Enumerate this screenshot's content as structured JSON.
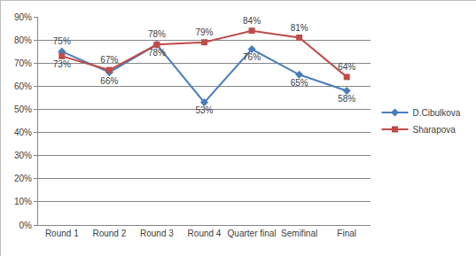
{
  "chart_data": {
    "type": "line",
    "categories": [
      "Round 1",
      "Round 2",
      "Round 3",
      "Round 4",
      "Quarter final",
      "Semifinal",
      "Final"
    ],
    "series": [
      {
        "name": "D.Cibulkova",
        "color": "#4a7ebb",
        "marker": "diamond",
        "values": [
          75,
          66,
          78,
          53,
          76,
          65,
          58
        ],
        "value_labels": [
          "75%",
          "66%",
          "78%",
          "53%",
          "76%",
          "65%",
          "58%"
        ]
      },
      {
        "name": "Sharapova",
        "color": "#be4b48",
        "marker": "square",
        "values": [
          73,
          67,
          78,
          79,
          84,
          81,
          64
        ],
        "value_labels": [
          "73%",
          "67%",
          "78%",
          "79%",
          "84%",
          "81%",
          "64%"
        ]
      }
    ],
    "ylim": [
      0,
      90
    ],
    "yticks": [
      {
        "value": 0,
        "label": "0%"
      },
      {
        "value": 10,
        "label": "10%"
      },
      {
        "value": 20,
        "label": "20%"
      },
      {
        "value": 30,
        "label": "30%"
      },
      {
        "value": 40,
        "label": "40%"
      },
      {
        "value": 50,
        "label": "50%"
      },
      {
        "value": 60,
        "label": "60%"
      },
      {
        "value": 70,
        "label": "70%"
      },
      {
        "value": 80,
        "label": "80%"
      },
      {
        "value": 90,
        "label": "90%"
      }
    ],
    "grid": true,
    "legend": "right",
    "data_labels": true
  }
}
